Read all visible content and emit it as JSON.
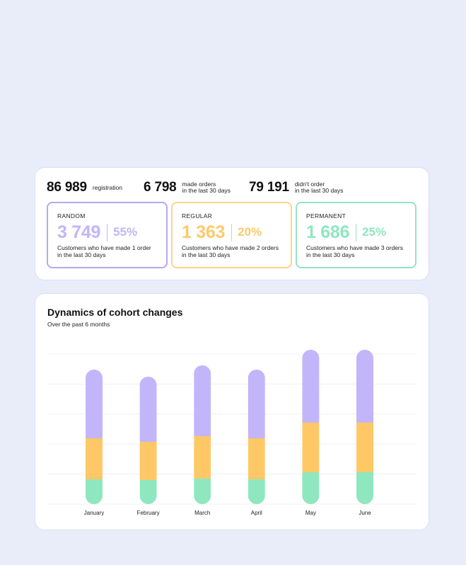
{
  "summary": {
    "items": [
      {
        "value": "86 989",
        "label_lines": [
          "registration"
        ]
      },
      {
        "value": "6 798",
        "label_lines": [
          "made orders",
          "in the last 30 days"
        ]
      },
      {
        "value": "79 191",
        "label_lines": [
          "didn't order",
          "in the last 30 days"
        ]
      }
    ]
  },
  "cohorts": [
    {
      "name": "RANDOM",
      "count": "3 749",
      "percent": "55%",
      "desc_lines": [
        "Customers who have made 1 order",
        "in the last 30 days"
      ],
      "color": "#c3b5f9",
      "border": "#b6a8ef"
    },
    {
      "name": "REGULAR",
      "count": "1 363",
      "percent": "20%",
      "desc_lines": [
        "Customers who have made 2 orders",
        "in the last 30 days"
      ],
      "color": "#fdca6a",
      "border": "#fbd488"
    },
    {
      "name": "PERMANENT",
      "count": "1 686",
      "percent": "25%",
      "desc_lines": [
        "Customers who have made 3 orders",
        "in the last 30 days"
      ],
      "color": "#8fe7c0",
      "border": "#97e4c7"
    }
  ],
  "chart": {
    "title": "Dynamics of cohort changes",
    "subtitle": "Over the past 6 months"
  },
  "chart_data": {
    "type": "bar",
    "stacked": true,
    "categories": [
      "January",
      "February",
      "March",
      "April",
      "May",
      "June"
    ],
    "series": [
      {
        "key": "permanent",
        "values": [
          35,
          34,
          36,
          35,
          45,
          45
        ],
        "color": "#8fe7c0"
      },
      {
        "key": "regular",
        "values": [
          58,
          54,
          60,
          58,
          70,
          70
        ],
        "color": "#ffc866"
      },
      {
        "key": "random",
        "values": [
          97,
          92,
          100,
          97,
          103,
          103
        ],
        "color": "#c3b5fa"
      }
    ],
    "ylim": [
      0,
      212
    ],
    "gridlines": 6,
    "grid": true,
    "legend": "none"
  }
}
